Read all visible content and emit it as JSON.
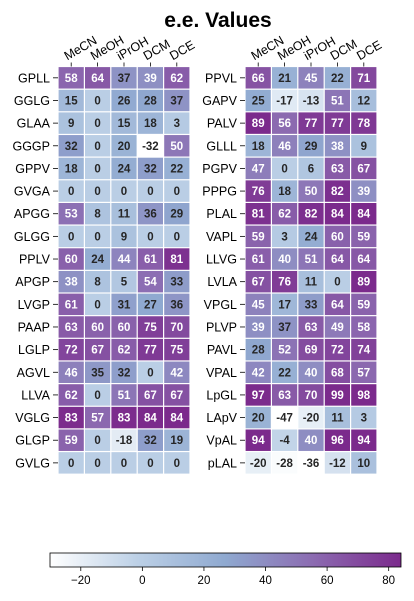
{
  "chart_data": {
    "type": "heatmap",
    "title": "e.e. Values",
    "columns": [
      "MeCN",
      "MeOH",
      "iPrOH",
      "DCM",
      "DCE"
    ],
    "color_range": [
      -30,
      84
    ],
    "colormap": [
      "#ffffff",
      "#bcd0e6",
      "#8fa9d0",
      "#8c6bb1",
      "#7b2a8c"
    ],
    "colorbar_ticks": [
      -20,
      0,
      20,
      40,
      60,
      80
    ],
    "panels": [
      {
        "rows": [
          "GPLL",
          "GGLG",
          "GLAA",
          "GGGP",
          "GPPV",
          "GVGA",
          "APGG",
          "GLGG",
          "PPLV",
          "APGP",
          "LVGP",
          "PAAP",
          "LGLP",
          "AGVL",
          "LLVA",
          "VGLG",
          "GLGP",
          "GVLG"
        ],
        "values": [
          [
            58,
            64,
            37,
            39,
            62
          ],
          [
            15,
            0,
            26,
            28,
            37
          ],
          [
            9,
            0,
            15,
            18,
            3
          ],
          [
            32,
            0,
            20,
            -32,
            50
          ],
          [
            18,
            0,
            24,
            32,
            22
          ],
          [
            0,
            0,
            0,
            0,
            0
          ],
          [
            53,
            8,
            11,
            36,
            29
          ],
          [
            0,
            0,
            9,
            0,
            0
          ],
          [
            60,
            24,
            44,
            61,
            81
          ],
          [
            38,
            8,
            5,
            54,
            33
          ],
          [
            61,
            0,
            31,
            27,
            36
          ],
          [
            63,
            60,
            60,
            75,
            70
          ],
          [
            72,
            67,
            62,
            77,
            75
          ],
          [
            46,
            35,
            32,
            0,
            42
          ],
          [
            62,
            0,
            51,
            67,
            67
          ],
          [
            83,
            57,
            83,
            84,
            84
          ],
          [
            59,
            0,
            -18,
            32,
            19
          ],
          [
            0,
            0,
            0,
            0,
            0
          ]
        ]
      },
      {
        "rows": [
          "PPVL",
          "GAPV",
          "PALV",
          "GLLL",
          "PGPV",
          "PPPG",
          "PLAL",
          "VAPL",
          "LLVG",
          "LVLA",
          "VPGL",
          "PLVP",
          "PAVL",
          "VPAL",
          "LpGL",
          "LApV",
          "VpAL",
          "pLAL"
        ],
        "values": [
          [
            66,
            21,
            45,
            22,
            71
          ],
          [
            25,
            -17,
            -13,
            51,
            12
          ],
          [
            89,
            56,
            77,
            77,
            78
          ],
          [
            18,
            46,
            29,
            38,
            9
          ],
          [
            47,
            0,
            6,
            63,
            67
          ],
          [
            76,
            18,
            50,
            82,
            39
          ],
          [
            81,
            62,
            82,
            84,
            84
          ],
          [
            59,
            3,
            24,
            60,
            59
          ],
          [
            61,
            40,
            51,
            64,
            64
          ],
          [
            67,
            76,
            11,
            0,
            89
          ],
          [
            45,
            17,
            33,
            64,
            59
          ],
          [
            39,
            37,
            63,
            49,
            58
          ],
          [
            28,
            52,
            69,
            72,
            74
          ],
          [
            42,
            22,
            40,
            68,
            57
          ],
          [
            97,
            63,
            70,
            99,
            98
          ],
          [
            20,
            -47,
            -20,
            11,
            3
          ],
          [
            94,
            -4,
            40,
            96,
            94
          ],
          [
            -20,
            -28,
            -36,
            -12,
            10
          ]
        ]
      }
    ]
  }
}
